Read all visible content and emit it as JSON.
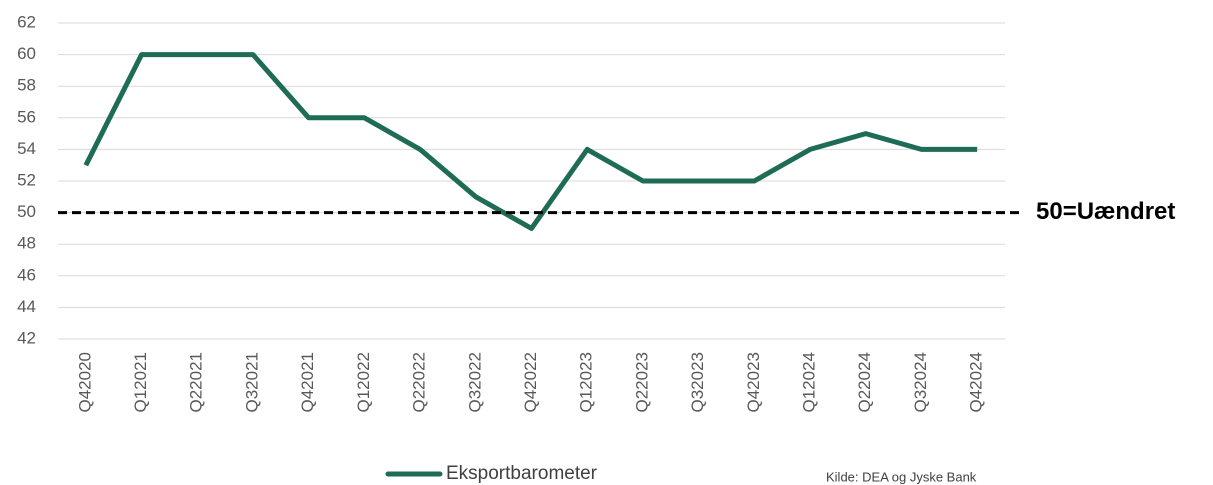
{
  "chart_data": {
    "type": "line",
    "categories": [
      "Q42020",
      "Q12021",
      "Q22021",
      "Q32021",
      "Q42021",
      "Q12022",
      "Q22022",
      "Q32022",
      "Q42022",
      "Q12023",
      "Q22023",
      "Q32023",
      "Q42023",
      "Q12024",
      "Q22024",
      "Q32024",
      "Q42024"
    ],
    "series": [
      {
        "name": "Eksportbarometer",
        "color": "#1e6b56",
        "values": [
          53,
          60,
          60,
          60,
          56,
          56,
          54,
          51,
          49,
          54,
          52,
          52,
          52,
          54,
          55,
          54,
          54
        ]
      }
    ],
    "ylim": [
      42,
      62
    ],
    "yticks": [
      42,
      44,
      46,
      48,
      50,
      52,
      54,
      56,
      58,
      60,
      62
    ],
    "grid": true,
    "reference_line": {
      "value": 50,
      "label": "50=Uændret"
    },
    "source": "Kilde: DEA og Jyske Bank",
    "legend": "bottom"
  }
}
